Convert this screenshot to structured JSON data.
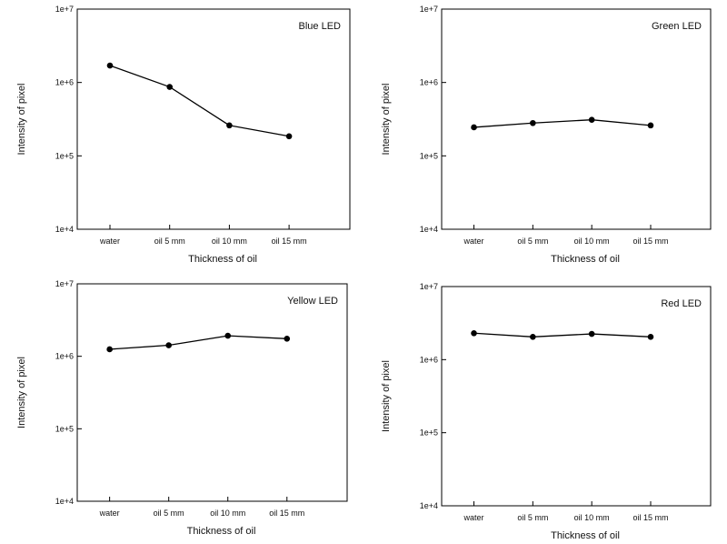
{
  "chart_data": [
    {
      "type": "line",
      "title": "Blue LED",
      "xlabel": "Thickness of oil",
      "ylabel": "Intensity of pixel",
      "categories": [
        "water",
        "oil 5 mm",
        "oil 10 mm",
        "oil 15 mm"
      ],
      "y_scale": "log",
      "ylim": [
        10000,
        10000000
      ],
      "yticks": [
        "1e+4",
        "1e+5",
        "1e+6",
        "1e+7"
      ],
      "values": [
        1700000,
        870000,
        260000,
        185000
      ],
      "grid": false,
      "color": "#000000"
    },
    {
      "type": "line",
      "title": "Green LED",
      "xlabel": "Thickness of oil",
      "ylabel": "Intensity of pixel",
      "categories": [
        "water",
        "oil 5 mm",
        "oil 10 mm",
        "oil 15 mm"
      ],
      "y_scale": "log",
      "ylim": [
        10000,
        10000000
      ],
      "yticks": [
        "1e+4",
        "1e+5",
        "1e+6",
        "1e+7"
      ],
      "values": [
        245000,
        280000,
        310000,
        260000
      ],
      "grid": false,
      "color": "#000000"
    },
    {
      "type": "line",
      "title": "Yellow LED",
      "xlabel": "Thickness of oil",
      "ylabel": "Intensity of pixel",
      "categories": [
        "water",
        "oil 5 mm",
        "oil 10 mm",
        "oil 15 mm"
      ],
      "y_scale": "log",
      "ylim": [
        10000,
        10000000
      ],
      "yticks": [
        "1e+4",
        "1e+5",
        "1e+6",
        "1e+7"
      ],
      "values": [
        1250000,
        1420000,
        1920000,
        1750000
      ],
      "grid": false,
      "color": "#000000"
    },
    {
      "type": "line",
      "title": "Red LED",
      "xlabel": "Thickness of oil",
      "ylabel": "Intensity of pixel",
      "categories": [
        "water",
        "oil 5 mm",
        "oil 10 mm",
        "oil 15 mm"
      ],
      "y_scale": "log",
      "ylim": [
        10000,
        10000000
      ],
      "yticks": [
        "1e+4",
        "1e+5",
        "1e+6",
        "1e+7"
      ],
      "values": [
        2300000,
        2050000,
        2250000,
        2050000
      ],
      "grid": false,
      "color": "#000000"
    }
  ]
}
